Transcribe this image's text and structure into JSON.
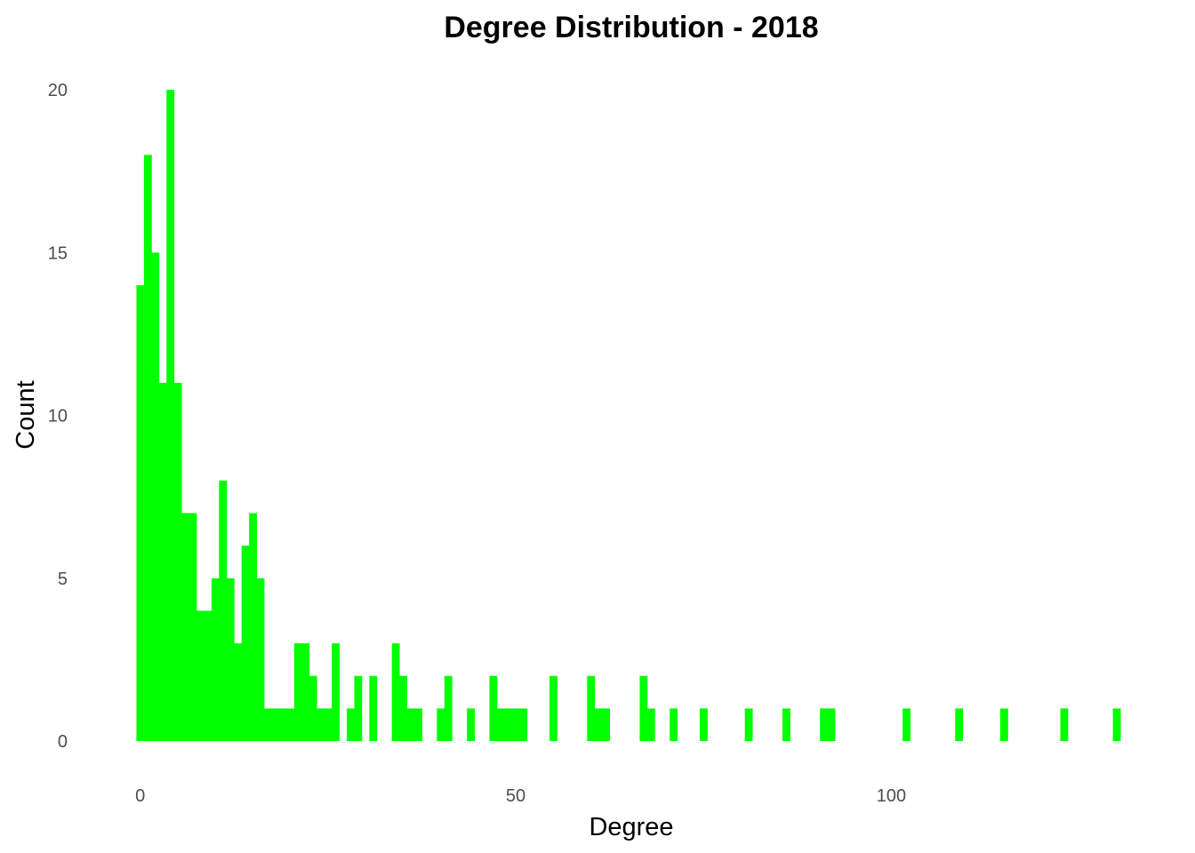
{
  "chart_data": {
    "type": "bar",
    "title": "Degree Distribution - 2018",
    "xlabel": "Degree",
    "ylabel": "Count",
    "xlim": [
      -1.5,
      132.5
    ],
    "ylim": [
      0,
      20
    ],
    "x_ticks": [
      0,
      50,
      100
    ],
    "y_ticks": [
      0,
      5,
      10,
      15,
      20
    ],
    "grid": false,
    "legend": "none",
    "bar_color": "#00ff00",
    "bin_width": 1,
    "series": [
      {
        "x": [
          0,
          1,
          2,
          3,
          4,
          5,
          6,
          7,
          8,
          9,
          10,
          11,
          12,
          13,
          14,
          15,
          16,
          17,
          18,
          19,
          20,
          21,
          22,
          23,
          24,
          25,
          26,
          28,
          29,
          31,
          34,
          35,
          36,
          37,
          40,
          41,
          44,
          47,
          48,
          49,
          50,
          51,
          55,
          60,
          61,
          62,
          67,
          68,
          71,
          75,
          81,
          86,
          91,
          92,
          102,
          109,
          115,
          123,
          130
        ],
        "values": [
          14,
          18,
          15,
          11,
          20,
          11,
          7,
          7,
          4,
          4,
          5,
          8,
          5,
          3,
          6,
          7,
          5,
          1,
          1,
          1,
          1,
          3,
          3,
          2,
          1,
          1,
          3,
          1,
          2,
          2,
          3,
          2,
          1,
          1,
          1,
          2,
          1,
          2,
          1,
          1,
          1,
          1,
          2,
          2,
          1,
          1,
          2,
          1,
          1,
          1,
          1,
          1,
          1,
          1,
          1,
          1,
          1,
          1,
          1
        ]
      }
    ]
  }
}
